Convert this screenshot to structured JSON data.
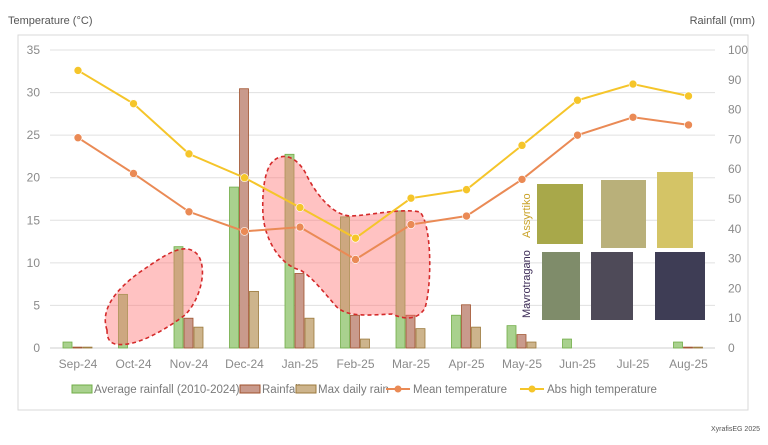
{
  "chart_data": {
    "type": "bar+line",
    "left_axis_title": "Temperature (°C)",
    "right_axis_title": "Rainfall (mm)",
    "left_ylim": [
      0,
      35
    ],
    "left_ticks": [
      "0",
      "5",
      "10",
      "15",
      "20",
      "25",
      "30",
      "35"
    ],
    "right_ylim": [
      0,
      100
    ],
    "right_ticks": [
      "0",
      "10",
      "20",
      "30",
      "40",
      "50",
      "60",
      "70",
      "80",
      "90",
      "100"
    ],
    "grid": true,
    "legend_position": "bottom",
    "categories": [
      "Sep-24",
      "Oct-24",
      "Nov-24",
      "Dec-24",
      "Jan-25",
      "Feb-25",
      "Mar-25",
      "Apr-25",
      "May-25",
      "Jun-25",
      "Jul-25",
      "Aug-25"
    ],
    "bar_series": [
      {
        "name": "Average rainfall (2010-2024)",
        "axis": "right",
        "color": "#a9d18e",
        "stroke": "#70ad47",
        "values": [
          2,
          18,
          34,
          54,
          65,
          44,
          46,
          11,
          7.5,
          3,
          0,
          2
        ]
      },
      {
        "name": "Rainfall",
        "axis": "right",
        "color": "#c99a8c",
        "stroke": "#a0522d",
        "values": [
          0.3,
          0,
          10,
          87,
          25,
          11,
          11,
          14.5,
          4.5,
          0,
          0,
          0.3
        ]
      },
      {
        "name": "Max daily rain",
        "axis": "right",
        "color": "#cdb48c",
        "stroke": "#9c7a3c",
        "values": [
          0.3,
          0,
          7,
          19,
          10,
          3,
          6.5,
          7,
          2,
          0,
          0,
          0.3
        ]
      }
    ],
    "line_series": [
      {
        "name": "Mean temperature",
        "axis": "left",
        "color": "#ea8a55",
        "values": [
          24.7,
          20.5,
          16,
          13.7,
          14.2,
          10.4,
          14.5,
          15.5,
          19.8,
          25,
          27.1,
          26.2
        ]
      },
      {
        "name": "Abs high temperature",
        "axis": "left",
        "color": "#f5c52a",
        "values": [
          32.6,
          28.7,
          22.8,
          20,
          16.5,
          12.9,
          17.6,
          18.6,
          23.8,
          29.1,
          31,
          29.6
        ]
      }
    ]
  },
  "photo_labels": {
    "white": "Assyrtiko",
    "red": "Mavrotragano"
  },
  "credit": "XyrafisEG 2025"
}
